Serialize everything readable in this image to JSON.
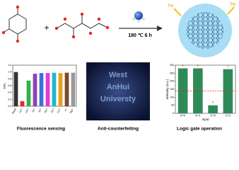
{
  "reaction": {
    "light_left": "hν",
    "light_right": "hν",
    "plus": "+",
    "condition": "180 ℃  6 h"
  },
  "panels": [
    {
      "caption": "Fluorescence sensing",
      "ylabel": "F/F₀",
      "categories": [
        "Blank",
        "Fe³⁺",
        "Cd²⁺",
        "Al³⁺",
        "Ni²⁺",
        "Pb²⁺",
        "Zn²⁺",
        "Co²⁺",
        "K⁺",
        "Mg²⁺"
      ],
      "values": [
        1.0,
        0.15,
        0.75,
        0.95,
        0.97,
        0.97,
        0.98,
        0.97,
        0.98,
        0.98
      ],
      "colors": [
        "#333333",
        "#e8262b",
        "#2db34a",
        "#8e44ad",
        "#3f6fd8",
        "#e23ad6",
        "#22b8c8",
        "#e8a020",
        "#7a4a2a",
        "#9a9a9a"
      ],
      "ylim": [
        0,
        1.2
      ],
      "yticks": [
        {
          "value": 0,
          "label": "0.0"
        },
        {
          "value": 0.2,
          "label": "0.2"
        },
        {
          "value": 0.4,
          "label": "0.4"
        },
        {
          "value": 0.6,
          "label": "0.6"
        },
        {
          "value": 0.8,
          "label": "0.8"
        },
        {
          "value": 1.0,
          "label": "1.0"
        },
        {
          "value": 1.2,
          "label": "1.2"
        }
      ]
    },
    {
      "caption": "Anti-counterfeiting",
      "text": [
        "West",
        "AnHui",
        "Universty"
      ]
    },
    {
      "caption": "Logic gate operation",
      "ylabel": "Intensity (a.u.)",
      "xlabel": "Input",
      "categories": [
        "(0,0)",
        "(0,1)",
        "(1,0)",
        "(1,1)"
      ],
      "values": [
        280,
        280,
        50,
        275
      ],
      "outputs": [
        "1",
        "1",
        "0",
        "1"
      ],
      "color": "#2e8b57",
      "threshold": 140,
      "ylim": [
        0,
        300
      ],
      "yticks": [
        0,
        50,
        100,
        150,
        200,
        250,
        300
      ]
    }
  ]
}
